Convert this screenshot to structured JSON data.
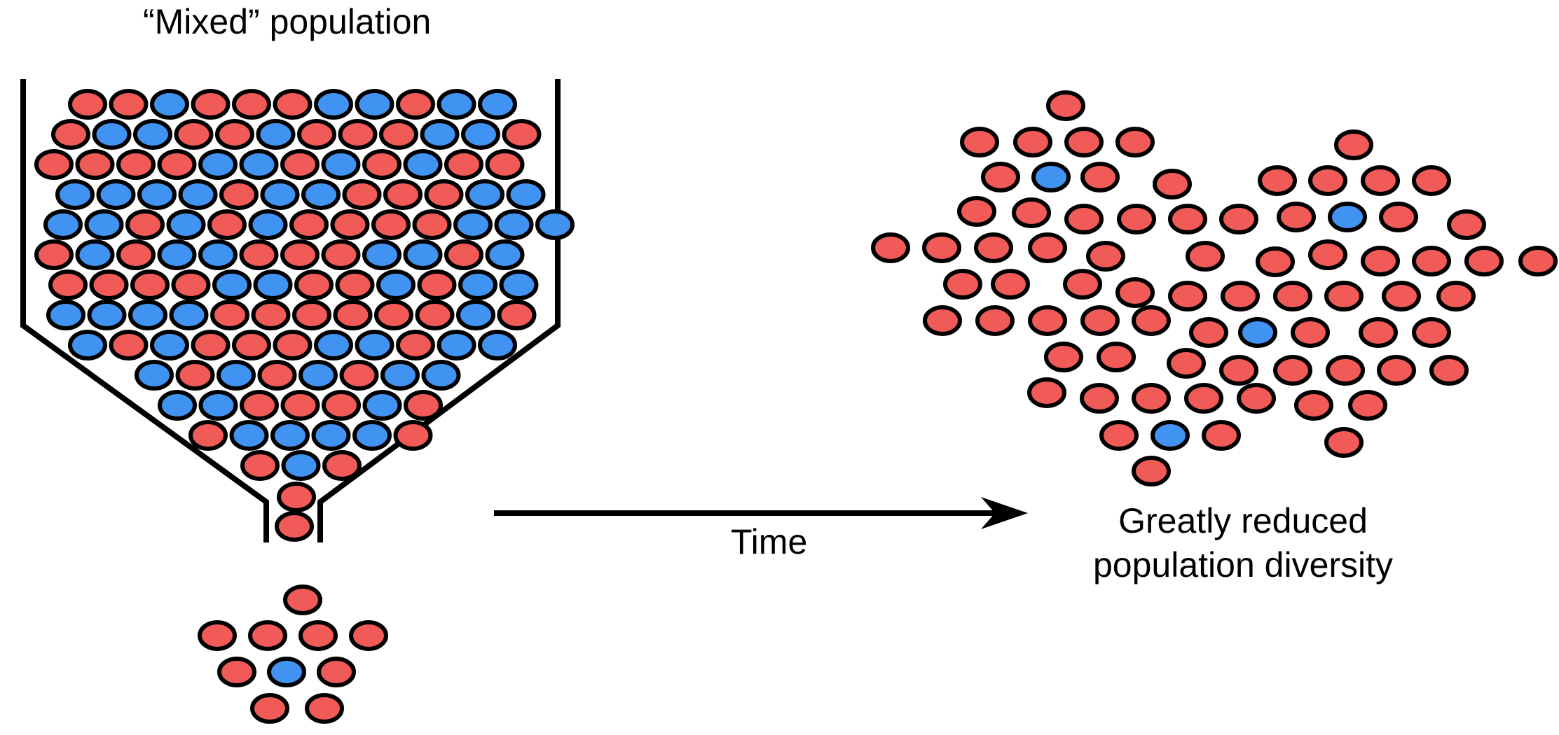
{
  "labels": {
    "mixed_population": "“Mixed” population",
    "time": "Time",
    "reduced_line1": "Greatly reduced",
    "reduced_line2": "population diversity"
  },
  "colors": {
    "red": "#f05a57",
    "blue": "#4193f1",
    "outline": "#000000"
  }
}
